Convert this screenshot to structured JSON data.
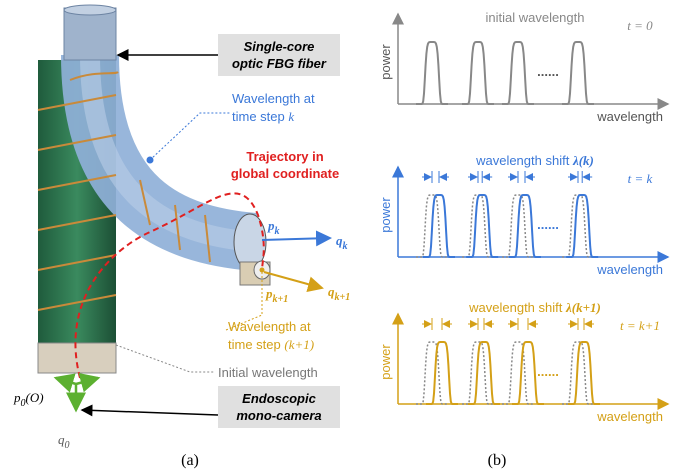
{
  "panel_a": {
    "caption": "(a)",
    "fiber_label": [
      "Single-core",
      "optic FBG fiber"
    ],
    "wavelength_k": {
      "line1": "Wavelength at",
      "line2": "time step",
      "var": "k"
    },
    "trajectory": [
      "Trajectory in",
      "global coordinate"
    ],
    "wavelength_k1": {
      "line1": "Wavelength at",
      "line2": "time step",
      "var": "(k+1)"
    },
    "initial": "Initial wavelength",
    "camera": [
      "Endoscopic",
      "mono-camera"
    ],
    "frames": [
      {
        "base": "p",
        "sub": "k"
      },
      {
        "base": "q",
        "sub": "k"
      },
      {
        "base": "p",
        "sub": "k+1"
      },
      {
        "base": "q",
        "sub": "k+1"
      },
      {
        "base": "p",
        "sub": "0",
        "suffix": "(O)"
      },
      {
        "base": "q",
        "sub": "0"
      }
    ]
  },
  "panel_b": {
    "caption": "(b)",
    "panels": [
      {
        "title": "initial wavelength",
        "time": "t = 0",
        "y_label": "power",
        "x_label": "wavelength",
        "ellipsis": "......"
      },
      {
        "title": "wavelength shift",
        "symbol": "λ(k)",
        "time": "t = k",
        "y_label": "power",
        "x_label": "wavelength",
        "ellipsis": "......"
      },
      {
        "title": "wavelength shift",
        "symbol": "λ(k+1)",
        "time": "t = k+1",
        "y_label": "power",
        "x_label": "wavelength",
        "ellipsis": "......"
      }
    ]
  }
}
